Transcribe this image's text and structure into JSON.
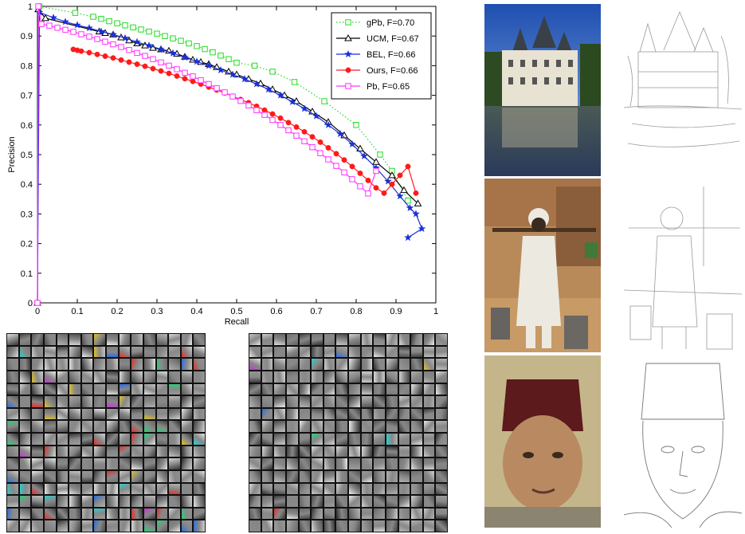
{
  "colors": {
    "gPb": "#22dd22",
    "UCM": "#000000",
    "BEL": "#1a2fd6",
    "Ours": "#ff1a1a",
    "Pb": "#ff33ff"
  },
  "chart_data": {
    "type": "line",
    "title": "",
    "xlabel": "Recall",
    "ylabel": "Precision",
    "xlim": [
      0,
      1
    ],
    "ylim": [
      0,
      1
    ],
    "grid": false,
    "legend_position": "top-right",
    "x_ticks": [
      "0",
      "0.1",
      "0.2",
      "0.3",
      "0.4",
      "0.5",
      "0.6",
      "0.7",
      "0.8",
      "0.9",
      "1"
    ],
    "y_ticks": [
      "0",
      "0.1",
      "0.2",
      "0.3",
      "0.4",
      "0.5",
      "0.6",
      "0.7",
      "0.8",
      "0.9",
      "1"
    ],
    "series": [
      {
        "name": "gPb, F=0.70",
        "color_key": "gPb",
        "marker": "square-open",
        "line": "dotted",
        "points": [
          [
            0.005,
            1.0
          ],
          [
            0.095,
            0.978
          ],
          [
            0.14,
            0.965
          ],
          [
            0.16,
            0.958
          ],
          [
            0.18,
            0.95
          ],
          [
            0.2,
            0.943
          ],
          [
            0.22,
            0.936
          ],
          [
            0.24,
            0.929
          ],
          [
            0.26,
            0.922
          ],
          [
            0.28,
            0.915
          ],
          [
            0.3,
            0.908
          ],
          [
            0.32,
            0.9
          ],
          [
            0.34,
            0.892
          ],
          [
            0.36,
            0.884
          ],
          [
            0.38,
            0.875
          ],
          [
            0.4,
            0.866
          ],
          [
            0.42,
            0.856
          ],
          [
            0.44,
            0.845
          ],
          [
            0.46,
            0.834
          ],
          [
            0.48,
            0.822
          ],
          [
            0.5,
            0.81
          ],
          [
            0.545,
            0.8
          ],
          [
            0.59,
            0.78
          ],
          [
            0.645,
            0.745
          ],
          [
            0.72,
            0.68
          ],
          [
            0.8,
            0.6
          ],
          [
            0.86,
            0.5
          ],
          [
            0.89,
            0.445
          ],
          [
            0.93,
            0.345
          ]
        ]
      },
      {
        "name": "UCM, F=0.67",
        "color_key": "UCM",
        "marker": "triangle-open",
        "line": "solid",
        "points": [
          [
            0.0,
            0.0
          ],
          [
            0.002,
            0.99
          ],
          [
            0.02,
            0.96
          ],
          [
            0.155,
            0.915
          ],
          [
            0.17,
            0.91
          ],
          [
            0.19,
            0.905
          ],
          [
            0.21,
            0.895
          ],
          [
            0.23,
            0.885
          ],
          [
            0.25,
            0.875
          ],
          [
            0.27,
            0.868
          ],
          [
            0.29,
            0.86
          ],
          [
            0.31,
            0.855
          ],
          [
            0.33,
            0.85
          ],
          [
            0.35,
            0.84
          ],
          [
            0.37,
            0.83
          ],
          [
            0.39,
            0.82
          ],
          [
            0.41,
            0.812
          ],
          [
            0.43,
            0.805
          ],
          [
            0.45,
            0.795
          ],
          [
            0.48,
            0.78
          ],
          [
            0.5,
            0.77
          ],
          [
            0.53,
            0.755
          ],
          [
            0.56,
            0.74
          ],
          [
            0.59,
            0.72
          ],
          [
            0.62,
            0.7
          ],
          [
            0.65,
            0.68
          ],
          [
            0.69,
            0.645
          ],
          [
            0.73,
            0.61
          ],
          [
            0.77,
            0.565
          ],
          [
            0.81,
            0.52
          ],
          [
            0.85,
            0.475
          ],
          [
            0.89,
            0.43
          ],
          [
            0.92,
            0.38
          ],
          [
            0.955,
            0.335
          ]
        ]
      },
      {
        "name": "BEL, F=0.66",
        "color_key": "BEL",
        "marker": "star",
        "line": "solid",
        "points": [
          [
            0.0,
            0.0
          ],
          [
            0.005,
            0.98
          ],
          [
            0.04,
            0.962
          ],
          [
            0.07,
            0.948
          ],
          [
            0.1,
            0.937
          ],
          [
            0.13,
            0.927
          ],
          [
            0.16,
            0.915
          ],
          [
            0.19,
            0.905
          ],
          [
            0.22,
            0.893
          ],
          [
            0.25,
            0.88
          ],
          [
            0.28,
            0.868
          ],
          [
            0.31,
            0.855
          ],
          [
            0.34,
            0.842
          ],
          [
            0.37,
            0.828
          ],
          [
            0.4,
            0.814
          ],
          [
            0.43,
            0.8
          ],
          [
            0.46,
            0.785
          ],
          [
            0.49,
            0.77
          ],
          [
            0.52,
            0.755
          ],
          [
            0.55,
            0.738
          ],
          [
            0.58,
            0.72
          ],
          [
            0.61,
            0.7
          ],
          [
            0.64,
            0.678
          ],
          [
            0.67,
            0.655
          ],
          [
            0.7,
            0.63
          ],
          [
            0.73,
            0.6
          ],
          [
            0.76,
            0.57
          ],
          [
            0.79,
            0.535
          ],
          [
            0.82,
            0.495
          ],
          [
            0.85,
            0.455
          ],
          [
            0.88,
            0.41
          ],
          [
            0.91,
            0.36
          ],
          [
            0.935,
            0.32
          ],
          [
            0.95,
            0.3
          ],
          [
            0.965,
            0.25
          ],
          [
            0.93,
            0.22
          ]
        ]
      },
      {
        "name": "Ours, F=0.66",
        "color_key": "Ours",
        "marker": "circle-filled",
        "line": "solid",
        "points": [
          [
            0.09,
            0.855
          ],
          [
            0.1,
            0.852
          ],
          [
            0.11,
            0.849
          ],
          [
            0.13,
            0.844
          ],
          [
            0.15,
            0.838
          ],
          [
            0.17,
            0.832
          ],
          [
            0.19,
            0.826
          ],
          [
            0.21,
            0.819
          ],
          [
            0.23,
            0.812
          ],
          [
            0.25,
            0.805
          ],
          [
            0.27,
            0.798
          ],
          [
            0.29,
            0.79
          ],
          [
            0.31,
            0.782
          ],
          [
            0.33,
            0.774
          ],
          [
            0.35,
            0.765
          ],
          [
            0.37,
            0.756
          ],
          [
            0.39,
            0.747
          ],
          [
            0.41,
            0.738
          ],
          [
            0.43,
            0.728
          ],
          [
            0.45,
            0.718
          ],
          [
            0.47,
            0.708
          ],
          [
            0.49,
            0.697
          ],
          [
            0.51,
            0.686
          ],
          [
            0.53,
            0.675
          ],
          [
            0.55,
            0.663
          ],
          [
            0.57,
            0.65
          ],
          [
            0.59,
            0.637
          ],
          [
            0.61,
            0.623
          ],
          [
            0.63,
            0.608
          ],
          [
            0.65,
            0.593
          ],
          [
            0.67,
            0.577
          ],
          [
            0.69,
            0.56
          ],
          [
            0.71,
            0.542
          ],
          [
            0.73,
            0.523
          ],
          [
            0.75,
            0.503
          ],
          [
            0.77,
            0.482
          ],
          [
            0.79,
            0.46
          ],
          [
            0.81,
            0.437
          ],
          [
            0.83,
            0.413
          ],
          [
            0.85,
            0.388
          ],
          [
            0.87,
            0.37
          ],
          [
            0.89,
            0.4
          ],
          [
            0.91,
            0.43
          ],
          [
            0.93,
            0.46
          ],
          [
            0.95,
            0.37
          ]
        ]
      },
      {
        "name": "Pb, F=0.65",
        "color_key": "Pb",
        "marker": "square-open",
        "line": "solid",
        "points": [
          [
            0.0,
            0.0
          ],
          [
            0.002,
            1.0
          ],
          [
            0.01,
            0.94
          ],
          [
            0.03,
            0.935
          ],
          [
            0.05,
            0.928
          ],
          [
            0.07,
            0.921
          ],
          [
            0.09,
            0.914
          ],
          [
            0.11,
            0.906
          ],
          [
            0.13,
            0.898
          ],
          [
            0.15,
            0.89
          ],
          [
            0.17,
            0.881
          ],
          [
            0.19,
            0.872
          ],
          [
            0.21,
            0.863
          ],
          [
            0.23,
            0.853
          ],
          [
            0.25,
            0.843
          ],
          [
            0.27,
            0.833
          ],
          [
            0.29,
            0.822
          ],
          [
            0.31,
            0.811
          ],
          [
            0.33,
            0.8
          ],
          [
            0.35,
            0.788
          ],
          [
            0.37,
            0.776
          ],
          [
            0.39,
            0.764
          ],
          [
            0.41,
            0.751
          ],
          [
            0.43,
            0.738
          ],
          [
            0.45,
            0.724
          ],
          [
            0.47,
            0.71
          ],
          [
            0.49,
            0.696
          ],
          [
            0.51,
            0.681
          ],
          [
            0.53,
            0.666
          ],
          [
            0.55,
            0.65
          ],
          [
            0.57,
            0.634
          ],
          [
            0.59,
            0.617
          ],
          [
            0.61,
            0.6
          ],
          [
            0.63,
            0.582
          ],
          [
            0.65,
            0.564
          ],
          [
            0.67,
            0.545
          ],
          [
            0.69,
            0.525
          ],
          [
            0.71,
            0.505
          ],
          [
            0.73,
            0.484
          ],
          [
            0.75,
            0.462
          ],
          [
            0.77,
            0.44
          ],
          [
            0.79,
            0.417
          ],
          [
            0.81,
            0.393
          ],
          [
            0.83,
            0.369
          ],
          [
            0.85,
            0.445
          ]
        ]
      }
    ]
  }
}
